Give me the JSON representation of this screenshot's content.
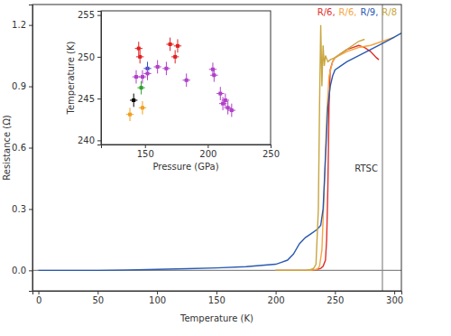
{
  "chart_data": [
    {
      "type": "line",
      "x_label": "Temperature (K)",
      "y_label": "Resistance (Ω)",
      "xlim": [
        -5,
        306
      ],
      "ylim": [
        -0.1,
        1.3
      ],
      "xticks": [
        0,
        50,
        100,
        150,
        200,
        250,
        300
      ],
      "yticks": [
        {
          "value": 0,
          "label": "0.0"
        },
        0.3,
        0.6,
        0.9,
        1.2
      ],
      "grid": false,
      "legend": "top-right",
      "series": [
        {
          "name": "R/6,",
          "color": "#e0302a",
          "x": [
            200,
            210,
            220,
            230,
            235,
            238,
            240,
            242,
            243,
            244,
            245,
            246,
            248,
            250,
            255,
            260,
            265,
            270,
            275,
            280,
            285,
            287
          ],
          "values": [
            0,
            0,
            0,
            0,
            0.005,
            0.01,
            0.02,
            0.05,
            0.15,
            0.4,
            0.8,
            0.98,
            1.02,
            1.04,
            1.06,
            1.08,
            1.09,
            1.1,
            1.09,
            1.07,
            1.04,
            1.03
          ]
        },
        {
          "name": "R/6,",
          "color": "#f5a541",
          "x": [
            200,
            220,
            230,
            235,
            237,
            239,
            241,
            243,
            245,
            248,
            250,
            260,
            270,
            280,
            290,
            300
          ],
          "values": [
            0,
            0,
            0,
            0.005,
            0.02,
            0.1,
            0.4,
            0.75,
            0.95,
            1.02,
            1.04,
            1.07,
            1.09,
            1.1,
            1.12,
            1.14
          ]
        },
        {
          "name": "R/9,",
          "color": "#2a5ab0",
          "x": [
            0,
            25,
            50,
            75,
            100,
            125,
            150,
            175,
            200,
            205,
            210,
            215,
            220,
            225,
            230,
            235,
            238,
            240,
            242,
            244,
            246,
            248,
            250,
            255,
            260,
            270,
            280,
            290,
            300,
            306
          ],
          "values": [
            0,
            0,
            0,
            0.002,
            0.005,
            0.008,
            0.012,
            0.018,
            0.03,
            0.04,
            0.05,
            0.08,
            0.13,
            0.16,
            0.18,
            0.2,
            0.22,
            0.3,
            0.55,
            0.8,
            0.9,
            0.95,
            0.98,
            1.0,
            1.02,
            1.05,
            1.08,
            1.11,
            1.14,
            1.16
          ]
        },
        {
          "name": "R/8",
          "color": "#c9a640",
          "x": [
            200,
            215,
            225,
            230,
            232,
            234,
            236,
            237,
            238,
            239,
            240,
            241,
            242,
            244,
            246,
            250,
            255,
            260,
            265,
            270,
            275
          ],
          "values": [
            0,
            0,
            0,
            0.005,
            0.01,
            0.03,
            0.3,
            0.8,
            1.2,
            0.9,
            1.1,
            1.0,
            1.05,
            1.02,
            1.03,
            1.04,
            1.06,
            1.08,
            1.1,
            1.12,
            1.13
          ]
        }
      ],
      "reference_lines": [
        {
          "axis": "y",
          "value": 0
        },
        {
          "axis": "x",
          "value": 290,
          "label": "RTSC"
        }
      ]
    },
    {
      "type": "scatter",
      "x_label": "Pressure (GPa)",
      "y_label": "Temperature (K)",
      "xlim": [
        115,
        250
      ],
      "ylim": [
        239.5,
        255.5
      ],
      "xticks": [
        150,
        200,
        250
      ],
      "yticks": [
        240,
        245,
        250,
        255
      ],
      "grid": false,
      "marker": "square",
      "series": [
        {
          "color": "#f0a020",
          "x": [
            138,
            148
          ],
          "values": [
            243.1,
            243.9
          ],
          "xerr": [
            3,
            3
          ],
          "yerr": [
            0.8,
            0.8
          ]
        },
        {
          "color": "#000000",
          "x": [
            141
          ],
          "values": [
            244.8
          ],
          "xerr": [
            3
          ],
          "yerr": [
            0.8
          ]
        },
        {
          "color": "#30a030",
          "x": [
            147
          ],
          "values": [
            246.3
          ],
          "xerr": [
            3
          ],
          "yerr": [
            0.8
          ]
        },
        {
          "color": "#3050d0",
          "x": [
            152
          ],
          "values": [
            248.6
          ],
          "xerr": [
            3
          ],
          "yerr": [
            0.8
          ]
        },
        {
          "color": "#e02020",
          "x": [
            145,
            146,
            170,
            174,
            176
          ],
          "values": [
            251.0,
            250.0,
            251.5,
            250.0,
            251.3
          ],
          "xerr": [
            3,
            3,
            3,
            3,
            3
          ],
          "yerr": [
            0.8,
            0.8,
            0.8,
            0.8,
            0.8
          ]
        },
        {
          "color": "#b040c8",
          "x": [
            143,
            148,
            152,
            160,
            167,
            183,
            204,
            205,
            210,
            212,
            214,
            216,
            219
          ],
          "values": [
            247.6,
            247.6,
            248.0,
            248.8,
            248.6,
            247.2,
            248.5,
            247.8,
            245.6,
            244.4,
            244.8,
            243.9,
            243.6
          ],
          "xerr": [
            3,
            3,
            3,
            3,
            3,
            3,
            3,
            3,
            3,
            3,
            3,
            3,
            3
          ],
          "yerr": [
            0.8,
            0.8,
            0.8,
            0.8,
            0.8,
            0.8,
            0.8,
            0.8,
            0.8,
            0.8,
            0.8,
            0.8,
            0.8
          ]
        }
      ]
    }
  ]
}
